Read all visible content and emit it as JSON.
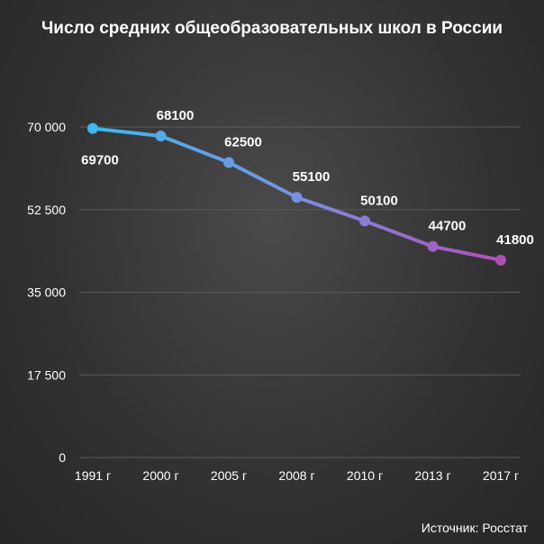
{
  "chart_data": {
    "type": "line",
    "title": "Число средних общеобразовательных школ в России",
    "categories": [
      "1991 г",
      "2000 г",
      "2005 г",
      "2008 г",
      "2010 г",
      "2013 г",
      "2017 г"
    ],
    "series": [
      {
        "values": [
          69700,
          68100,
          62500,
          55100,
          50100,
          44700,
          41800
        ]
      }
    ],
    "data_labels": [
      "69700",
      "68100",
      "62500",
      "55100",
      "50100",
      "44700",
      "41800"
    ],
    "yticks": [
      0,
      17500,
      35000,
      52500,
      70000
    ],
    "ytick_labels": [
      "0",
      "17 500",
      "35 000",
      "52 500",
      "70 000"
    ],
    "ylim": [
      0,
      70000
    ],
    "grid": true,
    "legend": "none",
    "colors": {
      "line_start": "#3db8ef",
      "line_mid": "#7a8fe0",
      "line_end": "#b04fb8",
      "grid": "#5a5a5a"
    }
  },
  "footer": {
    "source": "Источник: Росстат"
  }
}
